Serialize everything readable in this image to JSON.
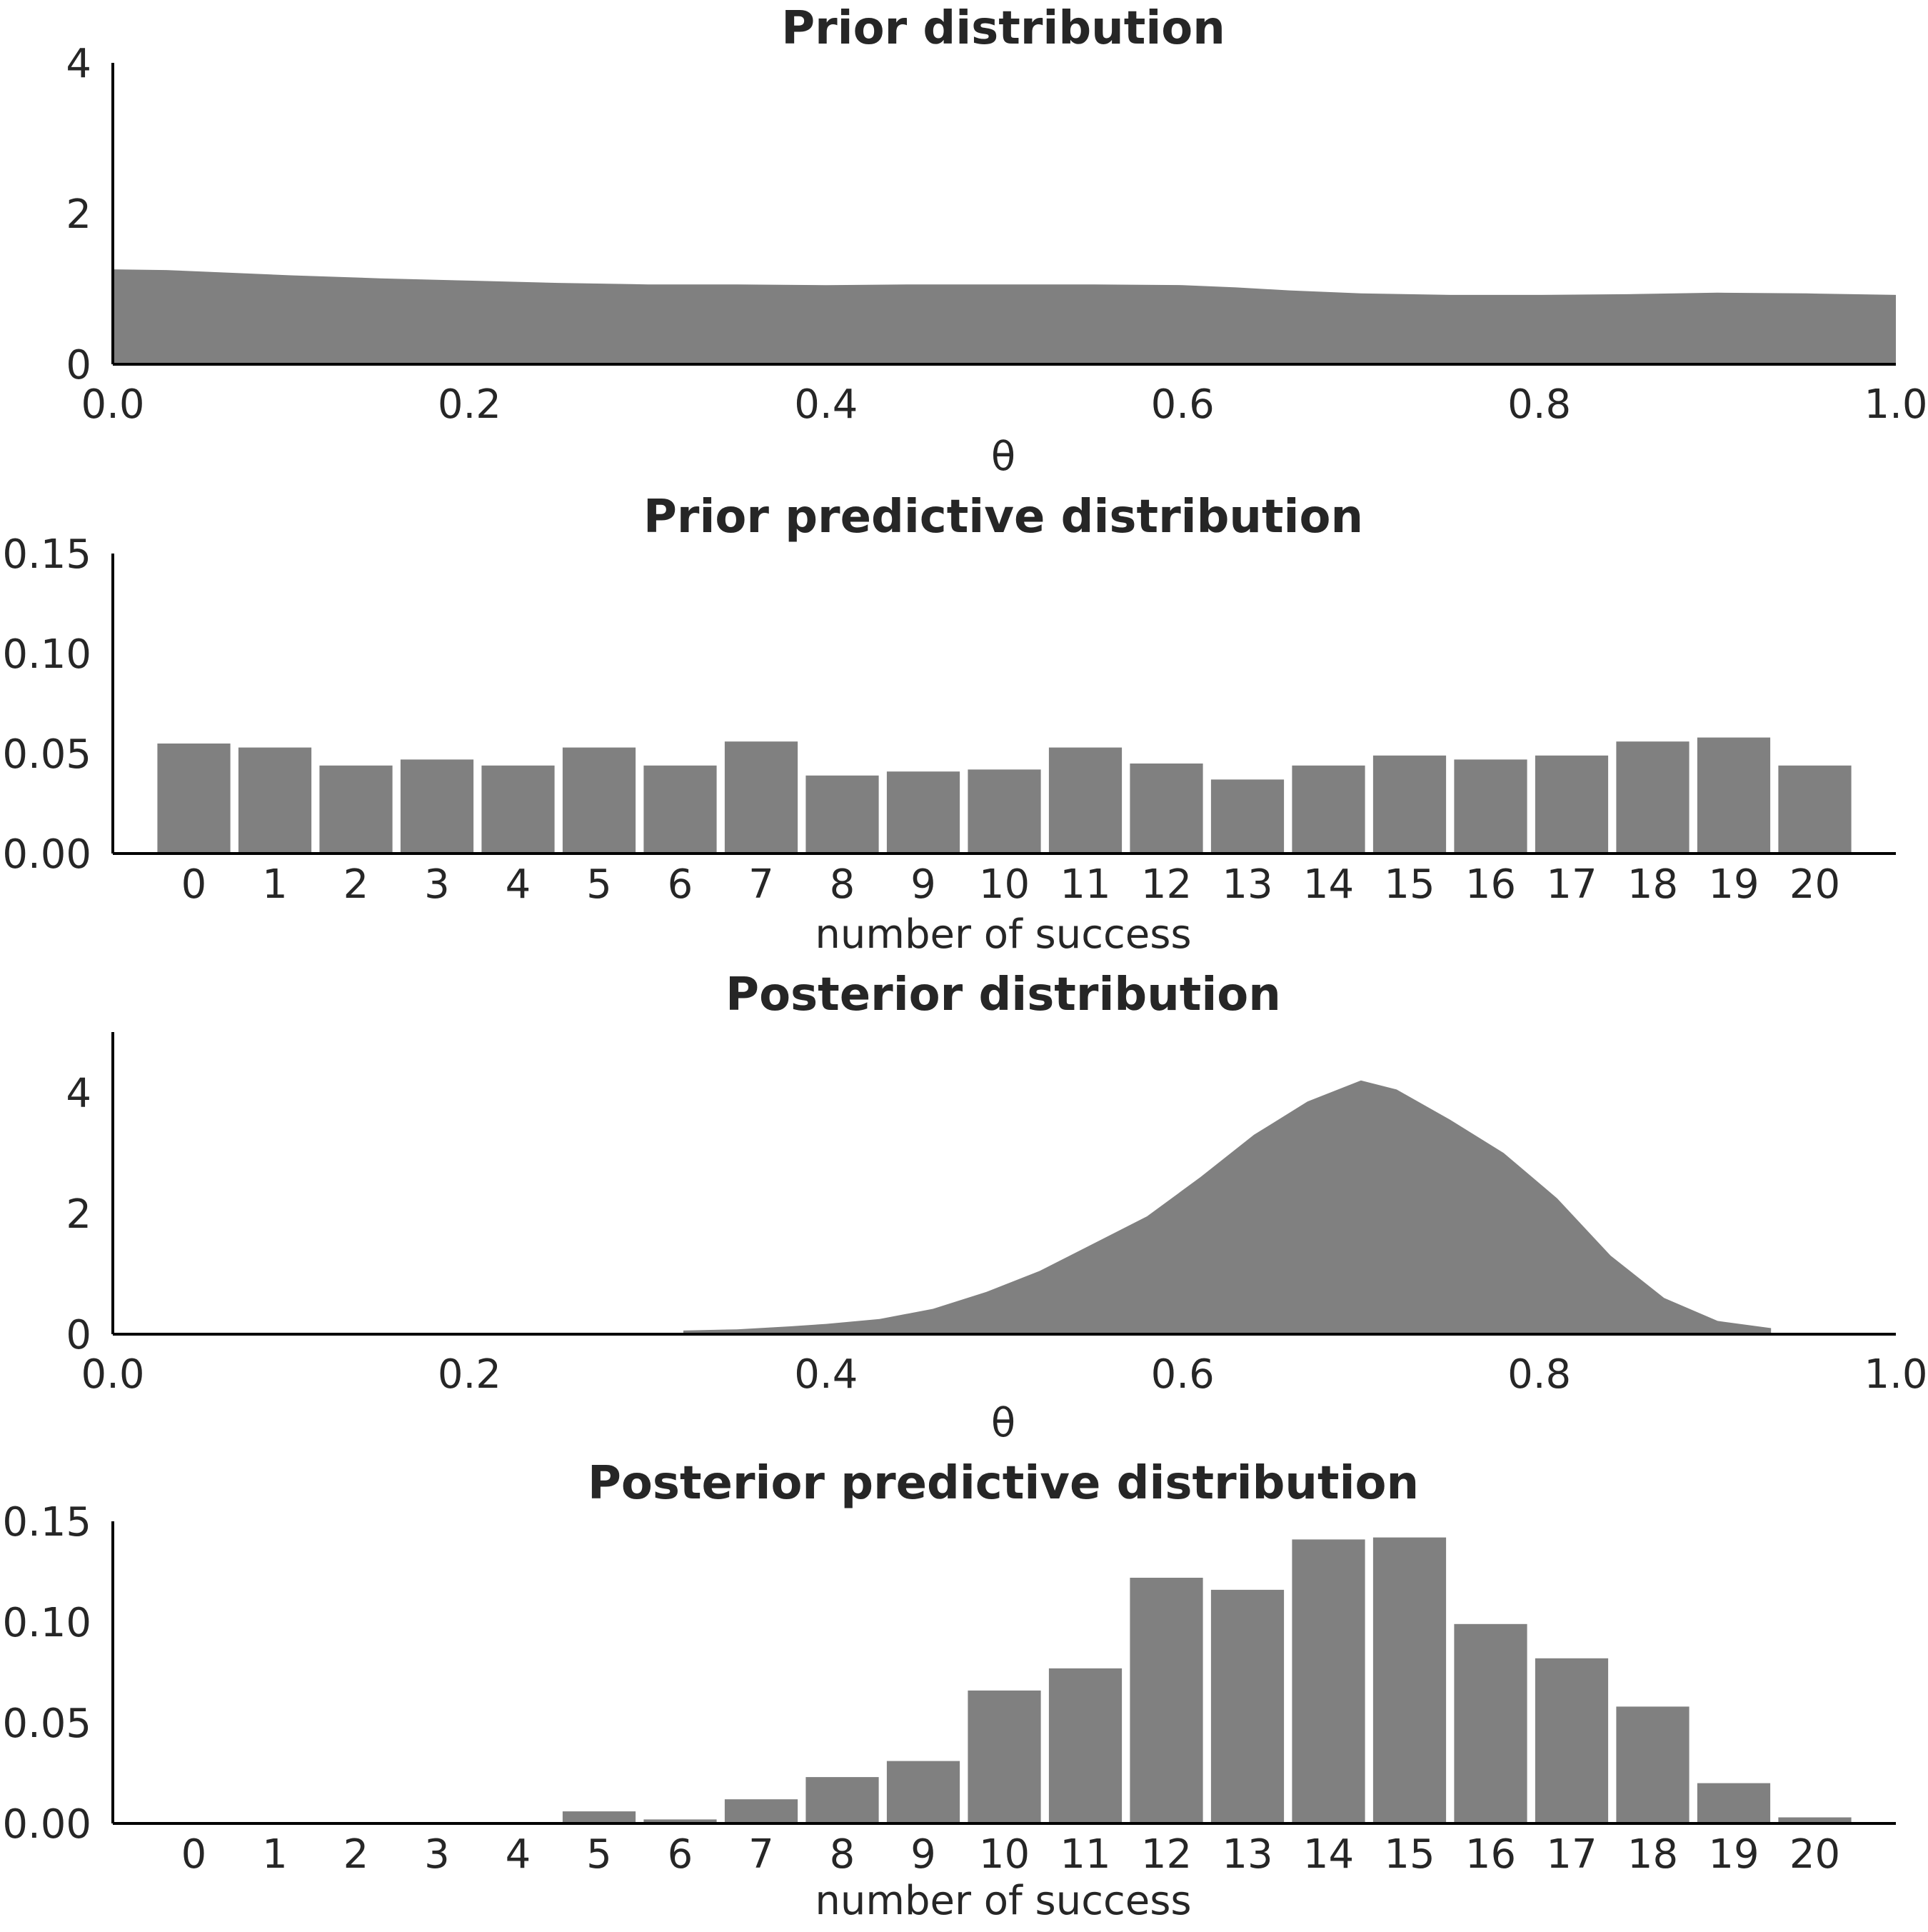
{
  "colors": {
    "fill": "#808080",
    "axis": "#000000",
    "text": "#262626",
    "background": "#ffffff"
  },
  "chart_data": [
    {
      "type": "area",
      "title": "Prior distribution",
      "xlabel": "θ",
      "ylabel": "",
      "xlim": [
        0.0,
        1.0
      ],
      "ylim": [
        0,
        4
      ],
      "xticks": [
        "0.0",
        "0.2",
        "0.4",
        "0.6",
        "0.8",
        "1.0"
      ],
      "xtick_values": [
        0.0,
        0.2,
        0.4,
        0.6,
        0.8,
        1.0
      ],
      "yticks": [
        "0",
        "2",
        "4"
      ],
      "ytick_values": [
        0,
        2,
        4
      ],
      "grid": false,
      "x": [
        0.0,
        0.03,
        0.06,
        0.1,
        0.15,
        0.2,
        0.25,
        0.3,
        0.35,
        0.4,
        0.45,
        0.5,
        0.55,
        0.6,
        0.63,
        0.66,
        0.7,
        0.75,
        0.8,
        0.85,
        0.9,
        0.95,
        1.0
      ],
      "y": [
        1.26,
        1.25,
        1.22,
        1.18,
        1.14,
        1.11,
        1.08,
        1.06,
        1.06,
        1.05,
        1.06,
        1.06,
        1.06,
        1.05,
        1.02,
        0.98,
        0.94,
        0.92,
        0.92,
        0.93,
        0.95,
        0.94,
        0.92
      ]
    },
    {
      "type": "bar",
      "title": "Prior predictive distribution",
      "xlabel": "number of success",
      "ylabel": "",
      "categories": [
        "0",
        "1",
        "2",
        "3",
        "4",
        "5",
        "6",
        "7",
        "8",
        "9",
        "10",
        "11",
        "12",
        "13",
        "14",
        "15",
        "16",
        "17",
        "18",
        "19",
        "20"
      ],
      "values": [
        0.055,
        0.053,
        0.044,
        0.047,
        0.044,
        0.053,
        0.044,
        0.056,
        0.039,
        0.041,
        0.042,
        0.053,
        0.045,
        0.037,
        0.044,
        0.049,
        0.047,
        0.049,
        0.056,
        0.058,
        0.044
      ],
      "ylim": [
        0,
        0.15
      ],
      "yticks": [
        "0.00",
        "0.05",
        "0.10",
        "0.15"
      ],
      "ytick_values": [
        0,
        0.05,
        0.1,
        0.15
      ],
      "grid": false
    },
    {
      "type": "area",
      "title": "Posterior distribution",
      "xlabel": "θ",
      "ylabel": "",
      "xlim": [
        0.0,
        1.0
      ],
      "ylim": [
        0,
        5
      ],
      "xticks": [
        "0.0",
        "0.2",
        "0.4",
        "0.6",
        "0.8",
        "1.0"
      ],
      "xtick_values": [
        0.0,
        0.2,
        0.4,
        0.6,
        0.8,
        1.0
      ],
      "yticks": [
        "0",
        "2",
        "4"
      ],
      "ytick_values": [
        0,
        2,
        4
      ],
      "grid": false,
      "x": [
        0.32,
        0.35,
        0.38,
        0.4,
        0.43,
        0.46,
        0.49,
        0.52,
        0.55,
        0.58,
        0.61,
        0.64,
        0.67,
        0.7,
        0.72,
        0.75,
        0.78,
        0.81,
        0.84,
        0.87,
        0.9,
        0.93
      ],
      "y": [
        0.06,
        0.08,
        0.13,
        0.17,
        0.25,
        0.42,
        0.7,
        1.05,
        1.5,
        1.95,
        2.6,
        3.3,
        3.85,
        4.2,
        4.05,
        3.55,
        3.0,
        2.25,
        1.3,
        0.6,
        0.22,
        0.1
      ]
    },
    {
      "type": "bar",
      "title": "Posterior predictive distribution",
      "xlabel": "number of success",
      "ylabel": "",
      "categories": [
        "0",
        "1",
        "2",
        "3",
        "4",
        "5",
        "6",
        "7",
        "8",
        "9",
        "10",
        "11",
        "12",
        "13",
        "14",
        "15",
        "16",
        "17",
        "18",
        "19",
        "20"
      ],
      "values": [
        0,
        0,
        0,
        0,
        0,
        0.006,
        0.002,
        0.012,
        0.023,
        0.031,
        0.066,
        0.077,
        0.122,
        0.116,
        0.141,
        0.142,
        0.099,
        0.082,
        0.058,
        0.02,
        0.003
      ],
      "ylim": [
        0,
        0.15
      ],
      "yticks": [
        "0.00",
        "0.05",
        "0.10",
        "0.15"
      ],
      "ytick_values": [
        0,
        0.05,
        0.1,
        0.15
      ],
      "grid": false
    }
  ]
}
